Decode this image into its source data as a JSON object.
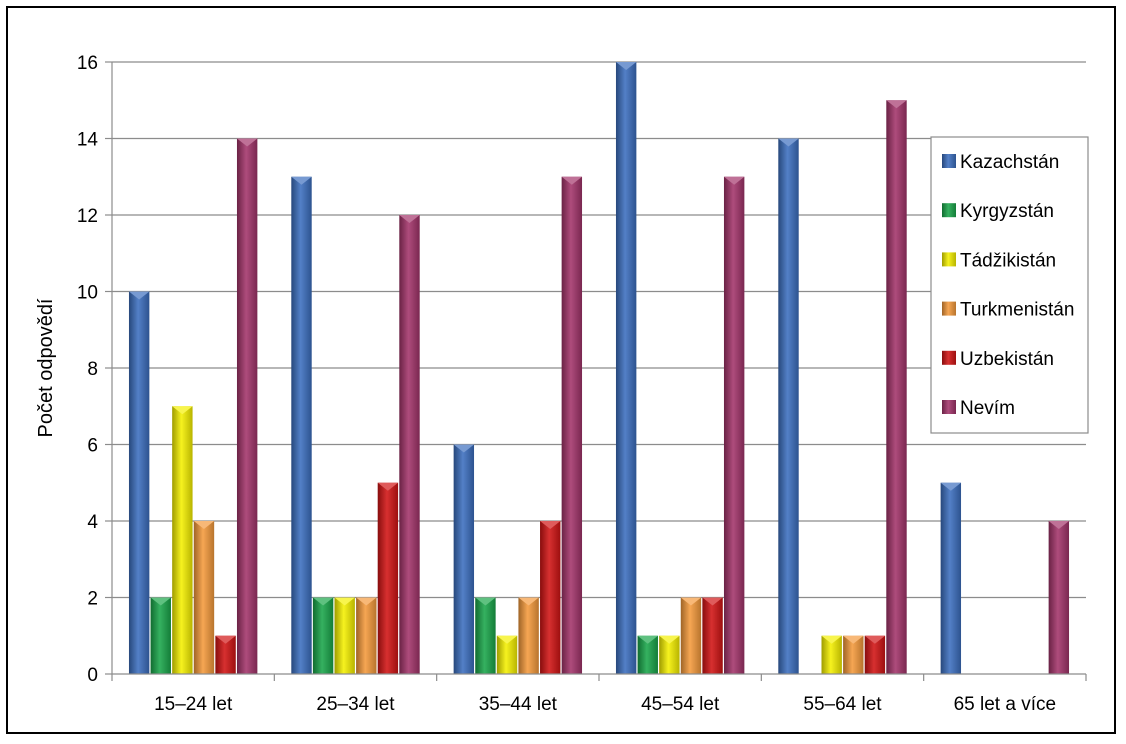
{
  "chart_data": {
    "type": "bar",
    "title": "",
    "xlabel": "",
    "ylabel": "Počet odpovědí",
    "ylim": [
      0,
      16
    ],
    "yticks": [
      0,
      2,
      4,
      6,
      8,
      10,
      12,
      14,
      16
    ],
    "grid": true,
    "legend_position": "right",
    "categories": [
      "15–24 let",
      "25–34 let",
      "35–44 let",
      "45–54 let",
      "55–64 let",
      "65 let a více"
    ],
    "series": [
      {
        "name": "Kazachstán",
        "color": "#3c6fbf",
        "values": [
          10,
          13,
          6,
          16,
          14,
          5
        ]
      },
      {
        "name": "Kyrgyzstán",
        "color": "#1aa64a",
        "values": [
          2,
          2,
          2,
          1,
          0,
          0
        ]
      },
      {
        "name": "Tádžikistán",
        "color": "#f5f000",
        "values": [
          7,
          2,
          1,
          1,
          1,
          0
        ]
      },
      {
        "name": "Turkmenistán",
        "color": "#f59a3c",
        "values": [
          4,
          2,
          2,
          2,
          1,
          0
        ]
      },
      {
        "name": "Uzbekistán",
        "color": "#d11414",
        "values": [
          1,
          5,
          4,
          2,
          1,
          0
        ]
      },
      {
        "name": "Nevím",
        "color": "#a3346a",
        "values": [
          14,
          12,
          13,
          13,
          15,
          4
        ]
      }
    ]
  }
}
